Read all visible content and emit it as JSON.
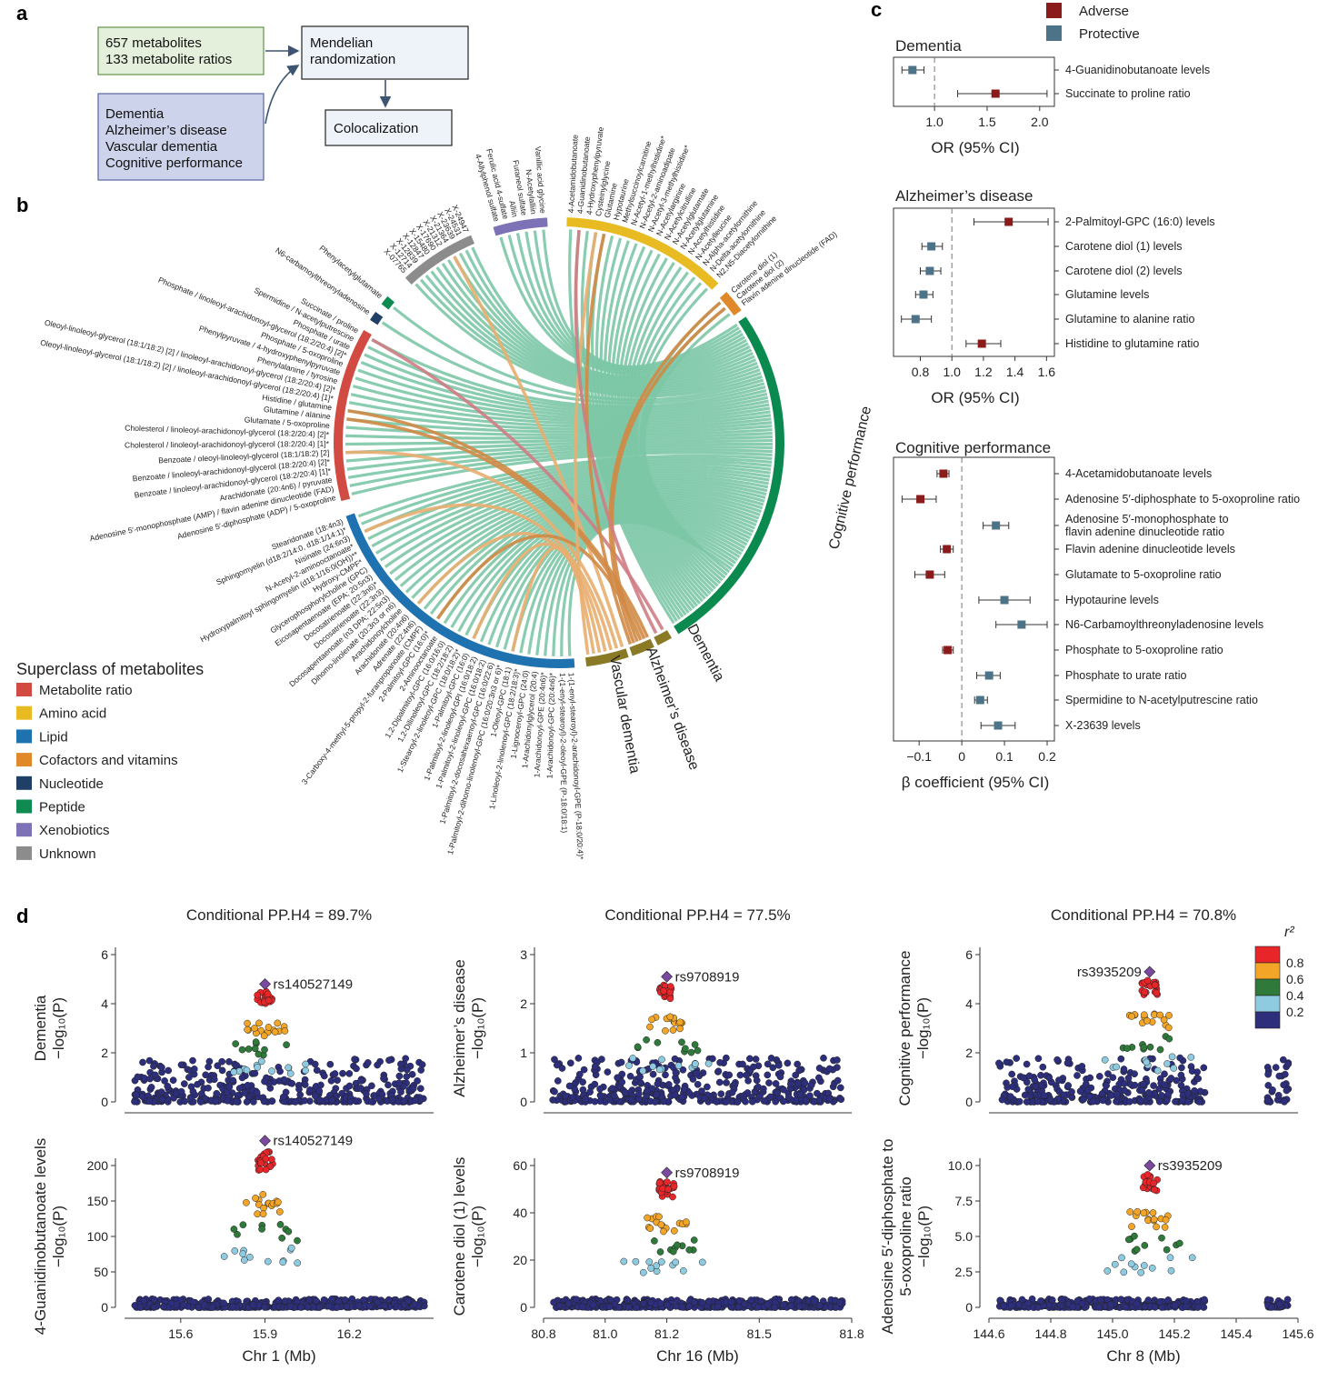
{
  "panel_labels": {
    "a": "a",
    "b": "b",
    "c": "c",
    "d": "d"
  },
  "panel_a": {
    "exposures": [
      "657 metabolites",
      "133 metabolite ratios"
    ],
    "outcomes": [
      "Dementia",
      "Alzheimer’s disease",
      "Vascular dementia",
      "Cognitive performance"
    ],
    "mr": [
      "Mendelian",
      "randomization"
    ],
    "coloc": "Colocalization"
  },
  "colors": {
    "Metabolite ratio": "#d24b43",
    "Amino acid": "#e9bb22",
    "Lipid": "#1f72b0",
    "Cofactors and vitamins": "#e0892a",
    "Nucleotide": "#1f3f66",
    "Peptide": "#0f8a50",
    "Xenobiotics": "#7d72b5",
    "Unknown": "#8c8c8c",
    "adverse": "#8b1a1a",
    "protective": "#4d7389",
    "outcome_arc": "#8b7a25",
    "cognitive_arc": "#0b8a4f"
  },
  "legend_b": {
    "title": "Superclass of metabolites",
    "items": [
      "Metabolite ratio",
      "Amino acid",
      "Lipid",
      "Cofactors and vitamins",
      "Nucleotide",
      "Peptide",
      "Xenobiotics",
      "Unknown"
    ]
  },
  "legend_c": {
    "adverse": "Adverse",
    "protective": "Protective"
  },
  "chart_data": [
    {
      "type": "chord",
      "panel": "b",
      "outcomes": [
        "Cognitive performance",
        "Dementia",
        "Alzheimer’s disease",
        "Vascular dementia"
      ],
      "default_target": "Cognitive performance",
      "groups": [
        {
          "superclass": "Metabolite ratio",
          "metabolites": [
            "Adenosine 5′-diphosphate (ADP) / 5-oxoproline",
            "Adenosine 5′-monophosphate (AMP) / flavin adenine dinucleotide (FAD)",
            "Arachidonate (20:4n6) / pyruvate",
            "Benzoate / linoleoyl-arachidonoyl-glycerol (18:2/20:4) [1]*",
            "Benzoate / linoleoyl-arachidonoyl-glycerol (18:2/20:4) [2]*",
            "Benzoate / oleoyl-linoleoyl-glycerol (18:1/18:2) [2]",
            "Cholesterol / linoleoyl-arachidonoyl-glycerol (18:2/20:4) [1]*",
            "Cholesterol / linoleoyl-arachidonoyl-glycerol (18:2/20:4) [2]*",
            "Glutamate / 5-oxoproline",
            "Glutamine / alanine",
            "Histidine / glutamine",
            "Oleoyl-linoleoyl-glycerol (18:1/18:2) [2] / linoleoyl-arachidonoyl-glycerol (18:2/20:4) [1]*",
            "Oleoyl-linoleoyl-glycerol (18:1/18:2) [2] / linoleoyl-arachidonoyl-glycerol (18:2/20:4) [2]*",
            "Phenylalanine / tyrosine",
            "Phenylpyruvate / 4-hydroxyphenylpyruvate",
            "Phosphate / 5-oxoproline",
            "Phosphate / linoleoyl-arachidonoyl-glycerol (18:2/20:4) [2]*",
            "Phosphate / urate",
            "Spermidine / N-acetylputrescine",
            "Succinate / proline"
          ]
        },
        {
          "superclass": "Nucleotide",
          "metabolites": [
            "N6-carbamoylthreonyladenosine"
          ]
        },
        {
          "superclass": "Peptide",
          "metabolites": [
            "Phenylacetylglutamate"
          ]
        },
        {
          "superclass": "Unknown",
          "metabolites": [
            "X-07765",
            "X-12714",
            "X-12839",
            "X-12847",
            "X-15480",
            "X-17690",
            "X-21312",
            "X-21364",
            "X-23639",
            "X-24531",
            "X-24947"
          ]
        },
        {
          "superclass": "Xenobiotics",
          "metabolites": [
            "4-Allylphenol sulfate",
            "Ferulic acid 4-sulfate",
            "Alliin",
            "Furaneol sulfate",
            "N-Acetylalliin",
            "Vanillic acid glycine"
          ]
        },
        {
          "superclass": "Amino acid",
          "metabolites": [
            "4-Acetamidobutanoate",
            "4-Guanidinobutanoate",
            "4-Hydroxyphenylpyruvate",
            "Cysteinylglycine",
            "Glutamine",
            "Hypotaurine",
            "Methylsuccinoylcarnitine",
            "N-Acetyl-1-methylhistidine*",
            "N-Acetyl-2-aminoadipate",
            "N-Acetyl-3-methylhistidine*",
            "N-Acetylarginine",
            "N-Acetylcitrulline",
            "N-Acetylglutamate",
            "N-Acetylglutamine",
            "N-Acetylhistidine",
            "N-Acetylleucine",
            "N-Alpha-acetylornithine",
            "N-Delta-acetylornithine",
            "N2,N5-Diacetylornithine"
          ]
        },
        {
          "superclass": "Cofactors and vitamins",
          "metabolites": [
            "Carotene diol (1)",
            "Carotene diol (2)",
            "Flavin adenine dinucleotide (FAD)"
          ]
        },
        {
          "superclass": "Lipid",
          "metabolites": [
            "1-(1-enyl-stearoyl)-2-arachidonoyl-GPE (P-18:0/20:4)*",
            "1-(1-enyl-stearoyl)-2-oleoyl-GPE (P-18:0/18:1)",
            "1-Arachidonoyl-GPC (20:4n6)*",
            "1-Arachidonoyl-GPE (20:4n6)*",
            "1-Arachidonylglycerol (20:4)",
            "1-Lignoceroyl-GPC (24:0)",
            "1-Linoleoyl-2-linolenoyl-GPC (18:2/18:3)*",
            "1-Oleoyl-GPC (18:1)",
            "1-Palmitoyl-2-dihomo-linolenoyl-GPC (16:0/20:3n3 or 6)*",
            "1-Palmitoyl-2-docosahexaenoyl-GPC (16:0/22:6)",
            "1-Palmitoyl-2-linoleoyl-GPC (16:0/18:2)",
            "1-Palmitoyl-2-linoleoyl-GPI (16:0/18:2)",
            "1-Palmitoyl-GPC (16:0)",
            "1-Stearoyl-2-linoleoyl-GPC (18:0/18:2)*",
            "1,2-Dilinoleoyl-GPC (18:2/18:2)",
            "1,2-Dipalmitoyl-GPC (16:0/16:0)",
            "2-Aminooctanoate",
            "2-Palmitoyl-GPC (16:0)*",
            "3-Carboxy-4-methyl-5-propyl-2-furanpropanoate (CMPF)",
            "Adrenate (22:4n6)",
            "Arachidonate (20:4n6)",
            "Arachidonoylcholine",
            "Dihomo-linolenate (20:3n3 or n6)",
            "Docosapentaenoate (n3 DPA; 22:5n3)",
            "Docosatrienoate (22:3n3)",
            "Docosatrienoate (22:3n6)*",
            "Eicosapentaenoate (EPA; 20:5n3)",
            "Glycerophosphorylcholine (GPC)",
            "Hydroxy-CMPF*",
            "Hydroxypalmitoyl sphingomyelin (d18:1/16:0(OH))**",
            "N-Acetyl-2-aminooctanoate*",
            "Nisinate (24:6n3)",
            "Sphingomyelin (d18:2/14:0, d18:1/14:1)*",
            "Stearidonate (18:4n3)"
          ]
        }
      ],
      "extra_links": [
        {
          "source": "Succinate / proline",
          "target": "Dementia"
        },
        {
          "source": "4-Guanidinobutanoate",
          "target": "Dementia"
        },
        {
          "source": "Histidine / glutamine",
          "target": "Alzheimer’s disease"
        },
        {
          "source": "Glutamine / alanine",
          "target": "Alzheimer’s disease"
        },
        {
          "source": "Glutamine",
          "target": "Alzheimer’s disease"
        },
        {
          "source": "Carotene diol (1)",
          "target": "Alzheimer’s disease"
        },
        {
          "source": "Carotene diol (2)",
          "target": "Alzheimer’s disease"
        },
        {
          "source": "2-Palmitoyl-GPC (16:0)*",
          "target": "Alzheimer’s disease"
        },
        {
          "source": "Benzoate / oleoyl-linoleoyl-glycerol (18:1/18:2) [2]",
          "target": "Vascular dementia"
        },
        {
          "source": "X-21364",
          "target": "Vascular dementia"
        },
        {
          "source": "Cysteinylglycine",
          "target": "Vascular dementia"
        },
        {
          "source": "Nisinate (24:6n3)",
          "target": "Vascular dementia"
        },
        {
          "source": "1-Palmitoyl-GPC (16:0)",
          "target": "Vascular dementia"
        },
        {
          "source": "1-Oleoyl-GPC (18:1)",
          "target": "Vascular dementia"
        },
        {
          "source": "Arachidonate (20:4n6)",
          "target": "Vascular dementia"
        }
      ]
    },
    {
      "type": "forest",
      "panel": "c",
      "title": "Dementia",
      "xlabel": "OR (95% CI)",
      "ref": 1.0,
      "xlim": [
        0.61,
        2.14
      ],
      "ticks": [
        "1.0",
        "1.5",
        "2.0"
      ],
      "rows": [
        {
          "label": "4-Guanidinobutanoate levels",
          "est": 0.79,
          "lo": 0.69,
          "hi": 0.9,
          "effect": "protective"
        },
        {
          "label": "Succinate to proline ratio",
          "est": 1.58,
          "lo": 1.22,
          "hi": 2.07,
          "effect": "adverse"
        }
      ]
    },
    {
      "type": "forest",
      "panel": "c",
      "title": "Alzheimer’s disease",
      "xlabel": "OR (95% CI)",
      "ref": 1.0,
      "xlim": [
        0.63,
        1.65
      ],
      "ticks": [
        "0.8",
        "1.0",
        "1.2",
        "1.4",
        "1.6"
      ],
      "rows": [
        {
          "label": "2-Palmitoyl-GPC (16:0) levels",
          "est": 1.36,
          "lo": 1.14,
          "hi": 1.61,
          "effect": "adverse"
        },
        {
          "label": "Carotene diol (1) levels",
          "est": 0.87,
          "lo": 0.81,
          "hi": 0.94,
          "effect": "protective"
        },
        {
          "label": "Carotene diol (2) levels",
          "est": 0.86,
          "lo": 0.8,
          "hi": 0.93,
          "effect": "protective"
        },
        {
          "label": "Glutamine levels",
          "est": 0.82,
          "lo": 0.77,
          "hi": 0.88,
          "effect": "protective"
        },
        {
          "label": "Glutamine to alanine ratio",
          "est": 0.77,
          "lo": 0.68,
          "hi": 0.87,
          "effect": "protective"
        },
        {
          "label": "Histidine to glutamine ratio",
          "est": 1.19,
          "lo": 1.09,
          "hi": 1.31,
          "effect": "adverse"
        }
      ]
    },
    {
      "type": "forest",
      "panel": "c",
      "title": "Cognitive performance",
      "xlabel": "β coefficient (95% CI)",
      "ref": 0,
      "xlim": [
        -0.16,
        0.217
      ],
      "ticks": [
        "−0.1",
        "0",
        "0.1",
        "0.2"
      ],
      "rows": [
        {
          "label": "4-Acetamidobutanoate levels",
          "est": -0.043,
          "lo": -0.058,
          "hi": -0.03,
          "effect": "adverse"
        },
        {
          "label": "Adenosine 5′-diphosphate to 5-oxoproline ratio",
          "est": -0.097,
          "lo": -0.14,
          "hi": -0.06,
          "effect": "adverse"
        },
        {
          "label": "Adenosine 5′-monophosphate to\nflavin adenine dinucleotide ratio",
          "est": 0.08,
          "lo": 0.05,
          "hi": 0.11,
          "effect": "protective"
        },
        {
          "label": "Flavin adenine dinucleotide levels",
          "est": -0.035,
          "lo": -0.05,
          "hi": -0.02,
          "effect": "adverse"
        },
        {
          "label": "Glutamate to 5-oxoproline ratio",
          "est": -0.075,
          "lo": -0.11,
          "hi": -0.04,
          "effect": "adverse"
        },
        {
          "label": "Hypotaurine levels",
          "est": 0.1,
          "lo": 0.04,
          "hi": 0.16,
          "effect": "protective"
        },
        {
          "label": "N6-Carbamoylthreonyladenosine levels",
          "est": 0.14,
          "lo": 0.08,
          "hi": 0.2,
          "effect": "protective"
        },
        {
          "label": "Phosphate to 5-oxoproline ratio",
          "est": -0.033,
          "lo": -0.045,
          "hi": -0.02,
          "effect": "adverse"
        },
        {
          "label": "Phosphate to urate ratio",
          "est": 0.064,
          "lo": 0.035,
          "hi": 0.09,
          "effect": "protective"
        },
        {
          "label": "Spermidine to N-acetylputrescine ratio",
          "est": 0.043,
          "lo": 0.03,
          "hi": 0.06,
          "effect": "protective"
        },
        {
          "label": "X-23639 levels",
          "est": 0.085,
          "lo": 0.045,
          "hi": 0.125,
          "effect": "protective"
        }
      ]
    },
    {
      "type": "scatter",
      "panel": "d",
      "r2_legend": {
        "title": "r²",
        "levels": [
          "0.8",
          "0.6",
          "0.4",
          "0.2"
        ],
        "colors": [
          "#e8262a",
          "#f2a526",
          "#2f7a3a",
          "#8fcbe0",
          "#2d2f7c"
        ]
      },
      "lead_color": "#7b4aa0",
      "loci": [
        {
          "title": "Conditional PP.H4 = 89.7%",
          "xlabel": "Chr 1 (Mb)",
          "xlim": [
            15.4,
            16.5
          ],
          "xticks": [
            "15.6",
            "15.9",
            "16.2"
          ],
          "lead_snp": "rs140527149",
          "lead_pos": 15.9,
          "top": {
            "ylabel": [
              "Dementia",
              "−log₁₀(P)"
            ],
            "yticks": [
              "0",
              "2",
              "4",
              "6"
            ],
            "ymax": 6,
            "lead_value": 4.8,
            "peak": 5.9
          },
          "bottom": {
            "ylabel": [
              "4-Guanidinobutanoate levels",
              "−log₁₀(P)"
            ],
            "yticks": [
              "0",
              "50",
              "100",
              "150",
              "200"
            ],
            "ymax": 200,
            "lead_value": 235,
            "peak": 235
          }
        },
        {
          "title": "Conditional PP.H4 = 77.5%",
          "xlabel": "Chr 16 (Mb)",
          "xlim": [
            80.8,
            81.8
          ],
          "xticks": [
            "80.8",
            "81.0",
            "81.2",
            "81.5",
            "81.8"
          ],
          "lead_snp": "rs9708919",
          "lead_pos": 81.2,
          "top": {
            "ylabel": [
              "Alzheimer’s disease",
              "−log₁₀(P)"
            ],
            "yticks": [
              "0",
              "1",
              "2",
              "3"
            ],
            "ymax": 3,
            "lead_value": 2.55,
            "peak": 3.5
          },
          "bottom": {
            "ylabel": [
              "Carotene diol (1) levels",
              "−log₁₀(P)"
            ],
            "yticks": [
              "0",
              "20",
              "40",
              "60"
            ],
            "ymax": 60,
            "lead_value": 57,
            "peak": 57
          }
        },
        {
          "title": "Conditional PP.H4 = 70.8%",
          "xlabel": "Chr 8 (Mb)",
          "xlim": [
            144.6,
            145.6
          ],
          "xticks": [
            "144.6",
            "144.8",
            "145.0",
            "145.2",
            "145.4",
            "145.6"
          ],
          "lead_snp": "rs3935209",
          "lead_pos": 145.12,
          "top": {
            "ylabel": [
              "Cognitive performance",
              "−log₁₀(P)"
            ],
            "yticks": [
              "0",
              "2",
              "4",
              "6"
            ],
            "ymax": 6,
            "lead_value": 5.3,
            "peak": 6.2
          },
          "bottom": {
            "ylabel": [
              "Adenosine 5′-diphosphate to",
              "5-oxoproline ratio",
              "−log₁₀(P)"
            ],
            "yticks": [
              "0",
              "2.5",
              "5.0",
              "7.5",
              "10.0"
            ],
            "ymax": 10,
            "lead_value": 10.0,
            "peak": 10.0
          }
        }
      ]
    }
  ]
}
